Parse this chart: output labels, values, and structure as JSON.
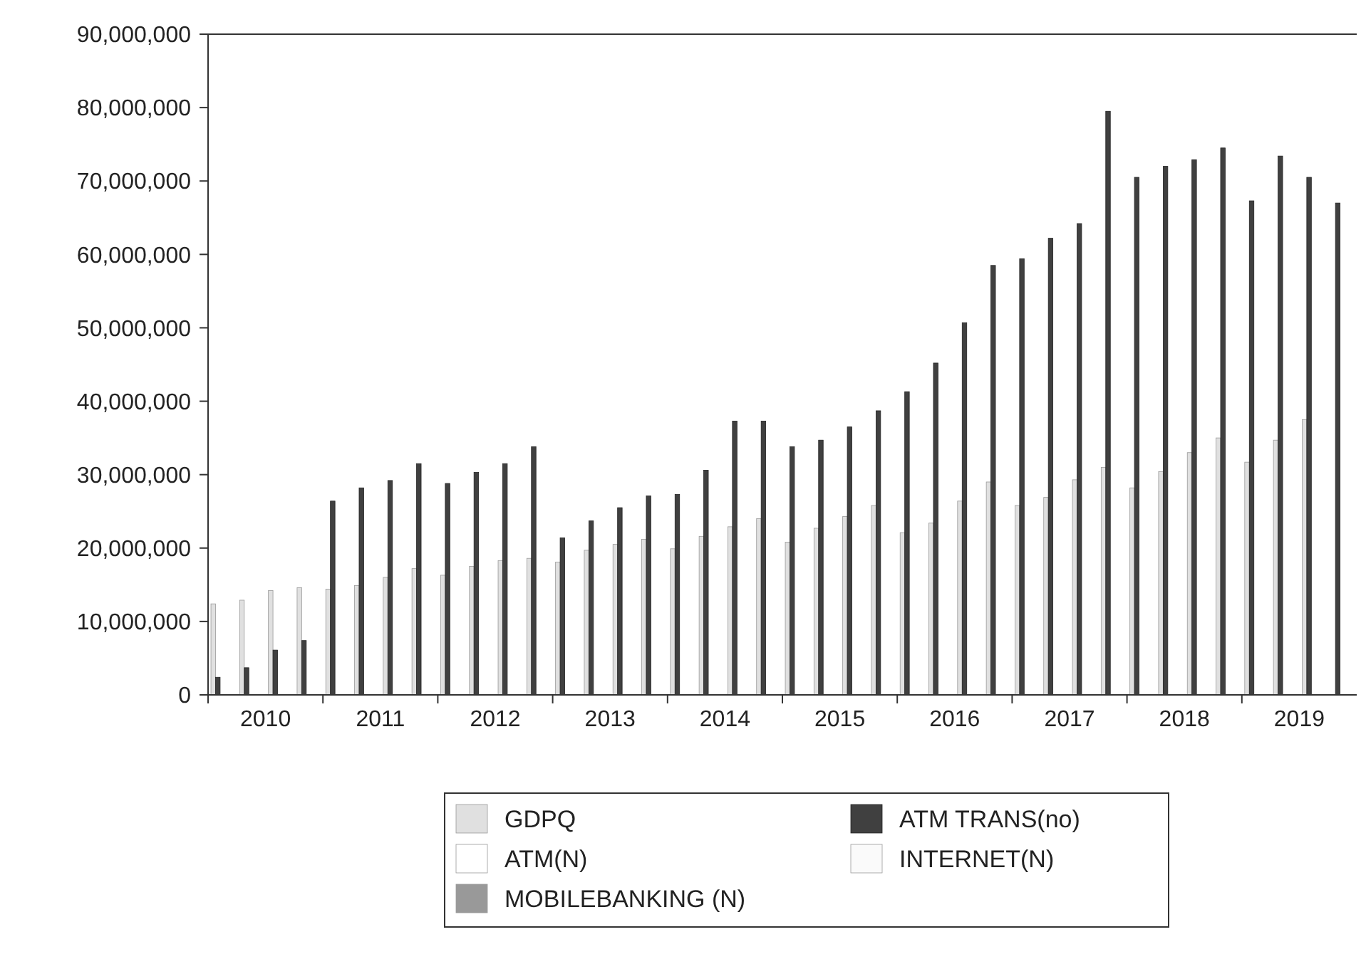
{
  "chart_data": {
    "type": "bar",
    "categories": [
      null,
      null,
      "2010",
      null,
      null,
      null,
      "2011",
      null,
      null,
      null,
      "2012",
      null,
      null,
      null,
      "2013",
      null,
      null,
      null,
      "2014",
      null,
      null,
      null,
      "2015",
      null,
      null,
      null,
      "2016",
      null,
      null,
      null,
      "2017",
      null,
      null,
      null,
      "2018",
      null,
      null,
      null,
      "2019",
      null
    ],
    "series": [
      {
        "name": "GDPQ",
        "color": "#e0e0e0",
        "values": [
          12400000,
          12900000,
          14200000,
          14600000,
          14400000,
          14900000,
          16000000,
          17200000,
          16300000,
          17500000,
          18300000,
          18600000,
          18100000,
          19700000,
          20500000,
          21200000,
          19900000,
          21600000,
          22900000,
          24000000,
          20800000,
          22700000,
          24300000,
          25800000,
          22100000,
          23400000,
          26400000,
          29000000,
          25800000,
          26900000,
          29300000,
          31000000,
          28200000,
          30400000,
          33000000,
          35000000,
          31700000,
          34700000,
          37500000,
          null
        ]
      },
      {
        "name": "ATM TRANS(no)",
        "color": "#404040",
        "values": [
          2400000,
          3700000,
          6100000,
          7400000,
          26400000,
          28200000,
          29200000,
          31500000,
          28800000,
          30300000,
          31500000,
          33800000,
          21400000,
          23700000,
          25500000,
          27100000,
          27300000,
          30600000,
          37300000,
          37300000,
          33800000,
          34700000,
          36500000,
          38700000,
          41300000,
          45200000,
          50700000,
          58500000,
          59400000,
          62200000,
          64200000,
          79500000,
          70500000,
          72000000,
          72900000,
          74500000,
          67300000,
          73400000,
          70500000,
          67000000
        ]
      },
      {
        "name": "ATM(N)",
        "color": "#ffffff",
        "values": [
          0,
          0,
          0,
          0,
          0,
          0,
          0,
          0,
          0,
          0,
          0,
          0,
          0,
          0,
          0,
          0,
          0,
          0,
          0,
          0,
          0,
          0,
          0,
          0,
          0,
          0,
          0,
          0,
          0,
          0,
          0,
          0,
          0,
          0,
          0,
          0,
          0,
          0,
          0,
          0
        ]
      },
      {
        "name": "INTERNET(N)",
        "color": "#fafafa",
        "values": [
          0,
          0,
          0,
          0,
          0,
          0,
          0,
          0,
          0,
          0,
          0,
          0,
          0,
          0,
          0,
          0,
          0,
          0,
          0,
          0,
          0,
          0,
          0,
          0,
          0,
          0,
          0,
          0,
          0,
          0,
          0,
          0,
          0,
          0,
          0,
          0,
          0,
          0,
          0,
          0
        ]
      },
      {
        "name": "MOBILEBANKING (N)",
        "color": "#999999",
        "values": [
          0,
          0,
          0,
          0,
          0,
          0,
          0,
          0,
          0,
          0,
          0,
          0,
          0,
          0,
          0,
          0,
          0,
          0,
          0,
          0,
          0,
          0,
          0,
          0,
          0,
          0,
          0,
          0,
          0,
          0,
          0,
          0,
          0,
          0,
          0,
          0,
          0,
          0,
          0,
          0
        ]
      }
    ],
    "ylim": [
      0,
      90000000
    ],
    "yticks": [
      {
        "value": 0,
        "label": "0"
      },
      {
        "value": 10000000,
        "label": "10,000,000"
      },
      {
        "value": 20000000,
        "label": "20,000,000"
      },
      {
        "value": 30000000,
        "label": "30,000,000"
      },
      {
        "value": 40000000,
        "label": "40,000,000"
      },
      {
        "value": 50000000,
        "label": "50,000,000"
      },
      {
        "value": 60000000,
        "label": "60,000,000"
      },
      {
        "value": 70000000,
        "label": "70,000,000"
      },
      {
        "value": 80000000,
        "label": "80,000,000"
      },
      {
        "value": 90000000,
        "label": "90,000,000"
      }
    ],
    "grid": false,
    "legend": "bottom"
  }
}
